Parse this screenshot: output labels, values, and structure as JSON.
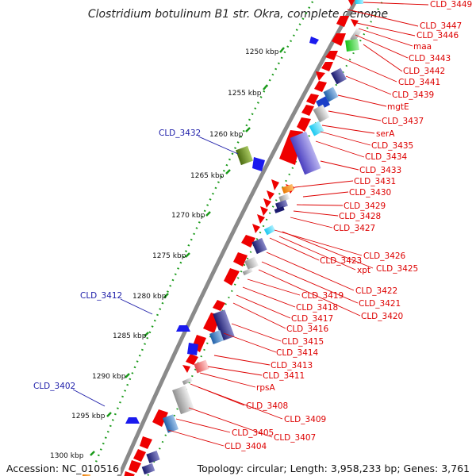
{
  "title": "Clostridium botulinum B1 str. Okra, complete genome",
  "colors": {
    "backbone": "#8a8a8a",
    "tick": "#1a9a1a",
    "gene_red": "#ee0000",
    "label_red": "#dd0000",
    "label_blue": "#1c1ca8"
  },
  "scale_ticks": [
    {
      "label": "1250 kbp",
      "kbp": 1250
    },
    {
      "label": "1255 kbp",
      "kbp": 1255
    },
    {
      "label": "1260 kbp",
      "kbp": 1260
    },
    {
      "label": "1265 kbp",
      "kbp": 1265
    },
    {
      "label": "1270 kbp",
      "kbp": 1270
    },
    {
      "label": "1275 kbp",
      "kbp": 1275
    },
    {
      "label": "1280 kbp",
      "kbp": 1280
    },
    {
      "label": "1285 kbp",
      "kbp": 1285
    },
    {
      "label": "1290 kbp",
      "kbp": 1290
    },
    {
      "label": "1295 kbp",
      "kbp": 1295
    },
    {
      "label": "1300 kbp",
      "kbp": 1300
    }
  ],
  "right_labels": [
    "CLD_3449",
    "CLD_3447",
    "CLD_3446",
    "maa",
    "CLD_3443",
    "CLD_3442",
    "CLD_3441",
    "CLD_3439",
    "mgtE",
    "CLD_3437",
    "serA",
    "CLD_3435",
    "CLD_3434",
    "CLD_3433",
    "CLD_3431",
    "CLD_3430",
    "CLD_3429",
    "CLD_3428",
    "CLD_3427",
    "CLD_3426",
    "CLD_3423",
    "xpt",
    "CLD_3425",
    "CLD_3422",
    "CLD_3421",
    "CLD_3420",
    "CLD_3419",
    "CLD_3418",
    "CLD_3417",
    "CLD_3416",
    "CLD_3415",
    "CLD_3414",
    "CLD_3413",
    "CLD_3411",
    "rpsA",
    "CLD_3408",
    "CLD_3409",
    "CLD_3407",
    "CLD_3405",
    "CLD_3404"
  ],
  "left_labels": [
    "CLD_3432",
    "CLD_3412",
    "CLD_3402"
  ],
  "footer": {
    "accession": "Accession: NC_010516",
    "topology": "Topology: circular; Length: 3,958,233 bp; Genes: 3,761"
  }
}
